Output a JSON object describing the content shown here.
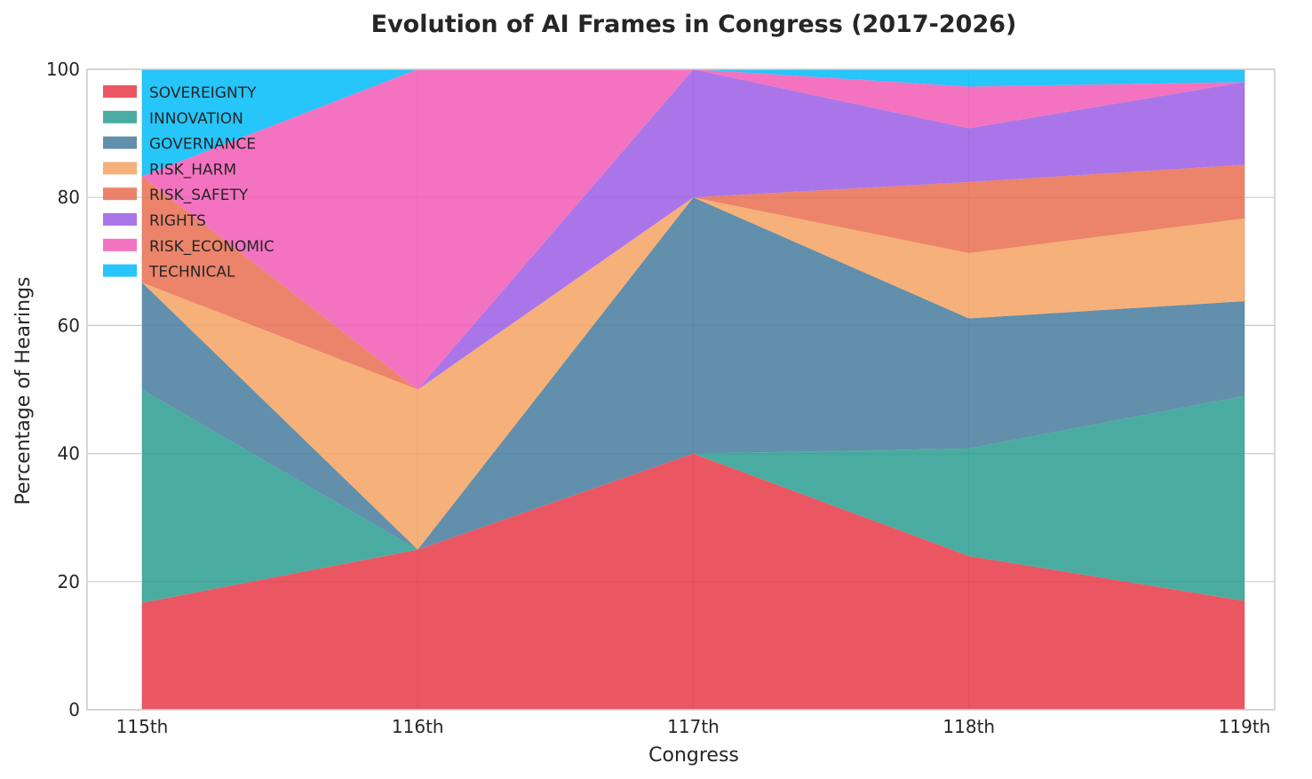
{
  "chart_data": {
    "type": "area",
    "stacked": true,
    "title": "Evolution of AI Frames in Congress (2017-2026)",
    "xlabel": "Congress",
    "ylabel": "Percentage of Hearings",
    "categories": [
      "115th",
      "116th",
      "117th",
      "118th",
      "119th"
    ],
    "ylim": [
      0,
      100
    ],
    "yticks": [
      0,
      20,
      40,
      60,
      80,
      100
    ],
    "grid": true,
    "legend_position": "top-left",
    "series": [
      {
        "name": "SOVEREIGNTY",
        "color": "#e63946",
        "values": [
          16.7,
          25.0,
          40.0,
          24.0,
          17.0
        ]
      },
      {
        "name": "INNOVATION",
        "color": "#2a9d8f",
        "values": [
          33.3,
          0.0,
          0.0,
          16.8,
          32.0
        ]
      },
      {
        "name": "GOVERNANCE",
        "color": "#457b9d",
        "values": [
          16.7,
          0.0,
          40.0,
          20.3,
          14.8
        ]
      },
      {
        "name": "RISK_HARM",
        "color": "#f4a261",
        "values": [
          0.0,
          25.0,
          0.0,
          10.2,
          12.9
        ]
      },
      {
        "name": "RISK_SAFETY",
        "color": "#e76f51",
        "values": [
          16.6,
          0.0,
          0.0,
          11.1,
          8.4
        ]
      },
      {
        "name": "RIGHTS",
        "color": "#9b5de5",
        "values": [
          0.0,
          0.0,
          20.0,
          8.4,
          12.9
        ]
      },
      {
        "name": "RISK_ECONOMIC",
        "color": "#f15bb5",
        "values": [
          0.0,
          50.0,
          0.0,
          6.5,
          0.0
        ]
      },
      {
        "name": "TECHNICAL",
        "color": "#00bbf9",
        "values": [
          16.7,
          0.0,
          0.0,
          2.7,
          2.0
        ]
      }
    ]
  }
}
